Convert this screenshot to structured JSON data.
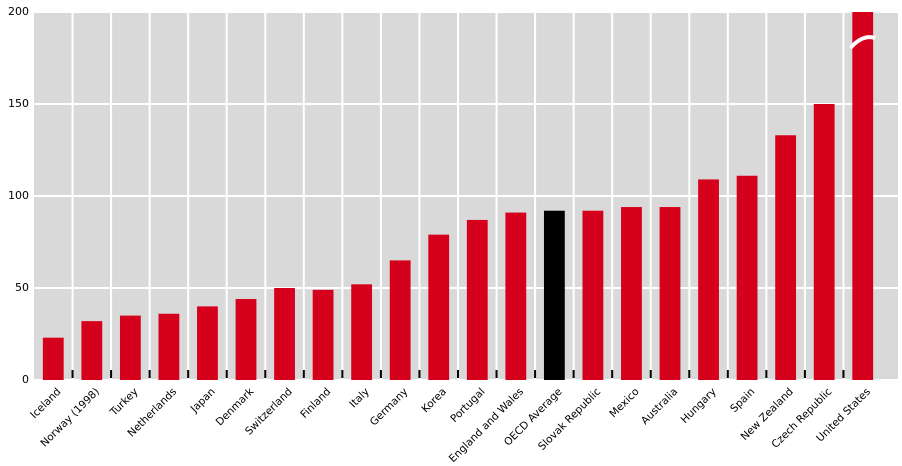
{
  "chart_data": {
    "type": "bar",
    "categories": [
      "Iceland",
      "Norway (1998)",
      "Turkey",
      "Netherlands",
      "Japan",
      "Denmark",
      "Switzerland",
      "Finland",
      "Italy",
      "Germany",
      "Korea",
      "Portugal",
      "England and Wales",
      "OECD Average",
      "Slovak Republic",
      "Mexico",
      "Australia",
      "Hungary",
      "Spain",
      "New Zealand",
      "Czech Republic",
      "United States"
    ],
    "values": [
      23,
      32,
      35,
      36,
      40,
      44,
      50,
      49,
      52,
      65,
      79,
      87,
      91,
      92,
      92,
      94,
      94,
      109,
      111,
      133,
      150,
      200
    ],
    "colors": [
      "#d5001c",
      "#d5001c",
      "#d5001c",
      "#d5001c",
      "#d5001c",
      "#d5001c",
      "#d5001c",
      "#d5001c",
      "#d5001c",
      "#d5001c",
      "#d5001c",
      "#d5001c",
      "#d5001c",
      "#000000",
      "#d5001c",
      "#d5001c",
      "#d5001c",
      "#d5001c",
      "#d5001c",
      "#d5001c",
      "#d5001c",
      "#d5001c"
    ],
    "ylim": [
      0,
      200
    ],
    "yticks": [
      0,
      50,
      100,
      150,
      200
    ],
    "grid": true
  }
}
